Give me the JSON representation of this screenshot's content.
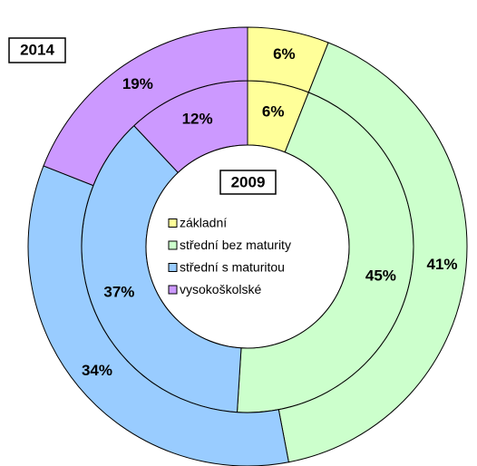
{
  "chart_data": {
    "type": "donut",
    "categories": [
      "základní",
      "střední bez maturity",
      "střední s maturitou",
      "vysokoškolské"
    ],
    "colors": [
      "#ffff99",
      "#ccffcc",
      "#99ccff",
      "#cc99ff"
    ],
    "series": [
      {
        "name": "2009",
        "values": [
          6,
          45,
          37,
          12
        ],
        "value_labels": [
          "6%",
          "45%",
          "37%",
          "12%"
        ]
      },
      {
        "name": "2014",
        "values": [
          6,
          41,
          34,
          19
        ],
        "value_labels": [
          "6%",
          "41%",
          "34%",
          "19%"
        ]
      }
    ]
  }
}
